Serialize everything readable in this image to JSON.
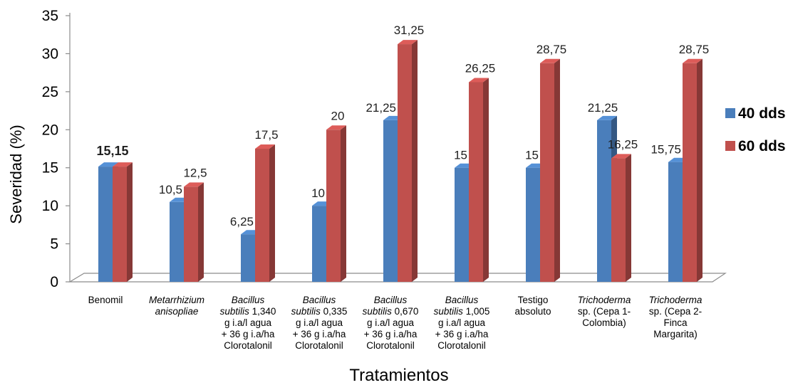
{
  "chart_data": {
    "type": "bar",
    "xlabel": "Tratamientos",
    "ylabel": "Severidad (%)",
    "ylim": [
      0,
      35
    ],
    "yticks": [
      0,
      5,
      10,
      15,
      20,
      25,
      30,
      35
    ],
    "yticks_labels": [
      "0",
      "5",
      "10",
      "15",
      "20",
      "25",
      "30",
      "35"
    ],
    "grid": false,
    "legend_position": "right",
    "categories": [
      "Benomil",
      "Metarrhizium anisopliae",
      "Bacillus subtilis 1,340 g i.a/l agua + 36 g i.a/ha Clorotalonil",
      "Bacillus subtilis 0,335 g i.a/l agua + 36 g i.a/ha Clorotalonil",
      "Bacillus subtilis 0,670 g i.a/l agua + 36 g i.a/ha Clorotalonil",
      "Bacillus subtilis 1,005 g i.a/l agua + 36 g i.a/ha Clorotalonil",
      "Testigo absoluto",
      "Trichoderma sp. (Cepa 1- Colombia)",
      "Trichoderma sp. (Cepa 2- Finca Margarita)"
    ],
    "category_label_lines": [
      [
        {
          "t": "Benomil",
          "i": false
        }
      ],
      [
        {
          "t": "Metarrhizium",
          "i": true
        },
        {
          "t": "anisopliae",
          "i": true
        }
      ],
      [
        {
          "t": "Bacillus",
          "i": true
        },
        {
          "t": "subtilis 1,340",
          "i": true,
          "split": "subtilis"
        },
        {
          "t": "g i.a/l agua",
          "i": false
        },
        {
          "t": "+ 36 g i.a/ha",
          "i": false
        },
        {
          "t": "Clorotalonil",
          "i": false
        }
      ],
      [
        {
          "t": "Bacillus",
          "i": true
        },
        {
          "t": "subtilis 0,335",
          "i": true,
          "split": "subtilis"
        },
        {
          "t": "g i.a/l agua",
          "i": false
        },
        {
          "t": "+ 36 g i.a/ha",
          "i": false
        },
        {
          "t": "Clorotalonil",
          "i": false
        }
      ],
      [
        {
          "t": "Bacillus",
          "i": true
        },
        {
          "t": "subtilis 0,670",
          "i": true,
          "split": "subtilis"
        },
        {
          "t": "g i.a/l agua",
          "i": false
        },
        {
          "t": "+ 36 g i.a/ha",
          "i": false
        },
        {
          "t": "Clorotalonil",
          "i": false
        }
      ],
      [
        {
          "t": "Bacillus",
          "i": true
        },
        {
          "t": "subtilis 1,005",
          "i": true,
          "split": "subtilis"
        },
        {
          "t": "g i.a/l agua",
          "i": false
        },
        {
          "t": "+ 36 g i.a/ha",
          "i": false
        },
        {
          "t": "Clorotalonil",
          "i": false
        }
      ],
      [
        {
          "t": "Testigo",
          "i": false
        },
        {
          "t": "absoluto",
          "i": false
        }
      ],
      [
        {
          "t": "Trichoderma",
          "i": true
        },
        {
          "t": "sp. (Cepa 1-",
          "i": false
        },
        {
          "t": "Colombia)",
          "i": false
        }
      ],
      [
        {
          "t": "Trichoderma",
          "i": true
        },
        {
          "t": "sp. (Cepa 2-",
          "i": false
        },
        {
          "t": "Finca",
          "i": false
        },
        {
          "t": "Margarita)",
          "i": false
        }
      ]
    ],
    "series": [
      {
        "name": "40 dds",
        "color": "#4a7ebb",
        "values": [
          15.15,
          10.5,
          6.25,
          10,
          21.25,
          15,
          15,
          21.25,
          15.75
        ],
        "labels": [
          "",
          "10,5",
          "6,25",
          "10",
          "21,25",
          "15",
          "15",
          "21,25",
          "15,75"
        ]
      },
      {
        "name": "60 dds",
        "color": "#c0504d",
        "values": [
          15.15,
          12.5,
          17.5,
          20,
          31.25,
          26.25,
          28.75,
          16.25,
          28.75
        ],
        "labels": [
          "",
          "12,5",
          "17,5",
          "20",
          "31,25",
          "26,25",
          "28,75",
          "16,25",
          "28,75"
        ]
      }
    ],
    "group_labels": [
      "15,15",
      "",
      "",
      "",
      "",
      "",
      "",
      "",
      ""
    ]
  }
}
